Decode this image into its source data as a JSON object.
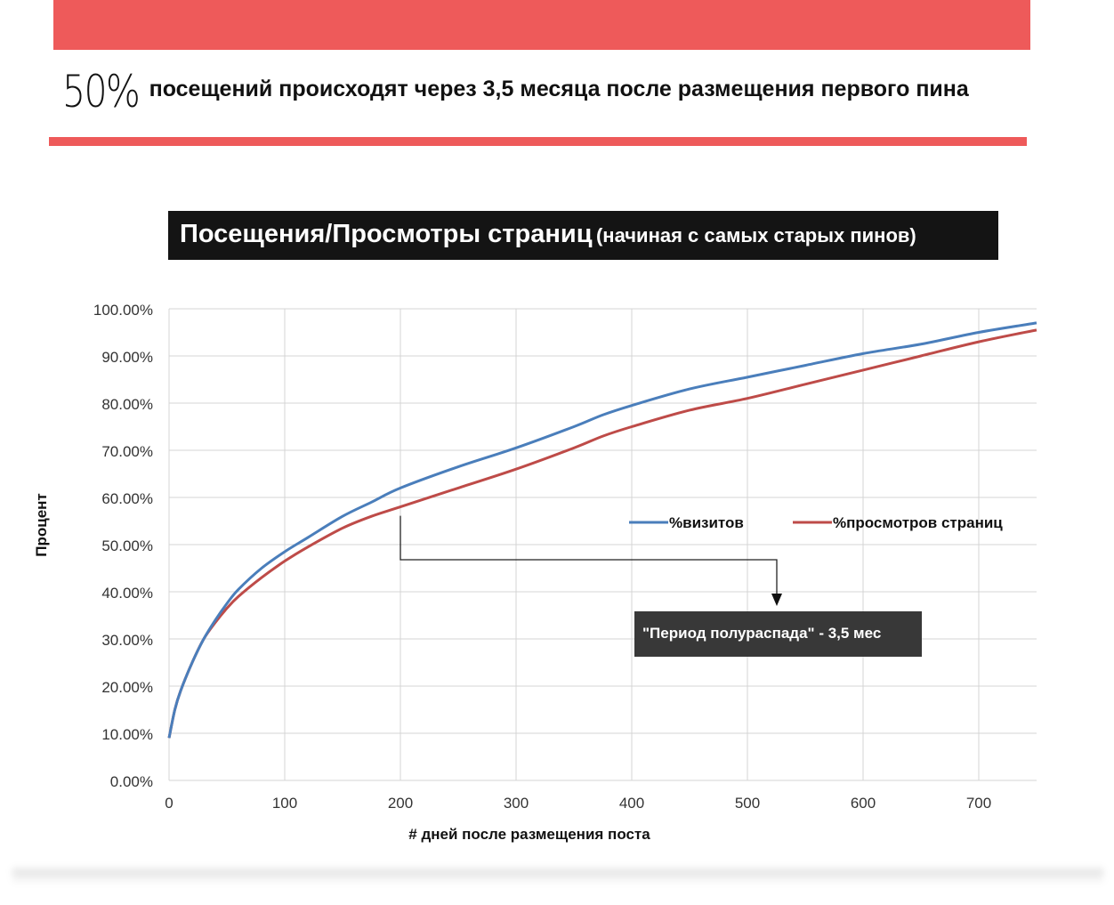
{
  "colors": {
    "accent": "#ee5a5a",
    "series_visits": "#4a7ebb",
    "series_pageviews": "#be4b48",
    "title_bg": "#141414"
  },
  "header": {
    "big_number": "50%",
    "text": "посещений происходят через 3,5 месяца после размещения первого пина"
  },
  "chart_data": {
    "type": "line",
    "title": "Посещения/Просмотры страниц",
    "subtitle": "(начиная с самых старых пинов)",
    "xlabel": "#  дней после размещения поста",
    "ylabel": "Процент",
    "xlim": [
      0,
      750
    ],
    "ylim": [
      0,
      100
    ],
    "x_ticks": [
      0,
      100,
      200,
      300,
      400,
      500,
      600,
      700
    ],
    "y_ticks": [
      0,
      10,
      20,
      30,
      40,
      50,
      60,
      70,
      80,
      90,
      100
    ],
    "y_tick_labels": [
      "0.00%",
      "10.00%",
      "20.00%",
      "30.00%",
      "40.00%",
      "50.00%",
      "60.00%",
      "70.00%",
      "80.00%",
      "90.00%",
      "100.00%"
    ],
    "grid": true,
    "legend_position": "middle-right",
    "series": [
      {
        "name": "%визитов",
        "x": [
          0,
          5,
          10,
          20,
          30,
          40,
          50,
          60,
          80,
          100,
          120,
          150,
          175,
          200,
          250,
          300,
          350,
          375,
          400,
          450,
          500,
          550,
          600,
          650,
          700,
          750
        ],
        "y": [
          9,
          15,
          19,
          25,
          30,
          34,
          37.5,
          40.5,
          45,
          48.5,
          51.5,
          56,
          59,
          62,
          66.5,
          70.5,
          75,
          77.5,
          79.5,
          83,
          85.5,
          88,
          90.5,
          92.5,
          95,
          97
        ]
      },
      {
        "name": "%просмотров страниц",
        "x": [
          0,
          5,
          10,
          20,
          30,
          40,
          50,
          60,
          80,
          100,
          120,
          150,
          175,
          200,
          250,
          300,
          350,
          375,
          400,
          450,
          500,
          550,
          600,
          650,
          700,
          750
        ],
        "y": [
          9,
          15,
          19,
          25,
          30,
          33.5,
          36.5,
          39,
          43,
          46.5,
          49.5,
          53.5,
          56,
          58,
          62,
          66,
          70.5,
          73,
          75,
          78.5,
          81,
          84,
          87,
          90,
          93,
          95.5
        ]
      }
    ],
    "annotation": {
      "text": "\"Период полураспада\" - 3,5 мес",
      "x": 200,
      "y": 58
    }
  }
}
